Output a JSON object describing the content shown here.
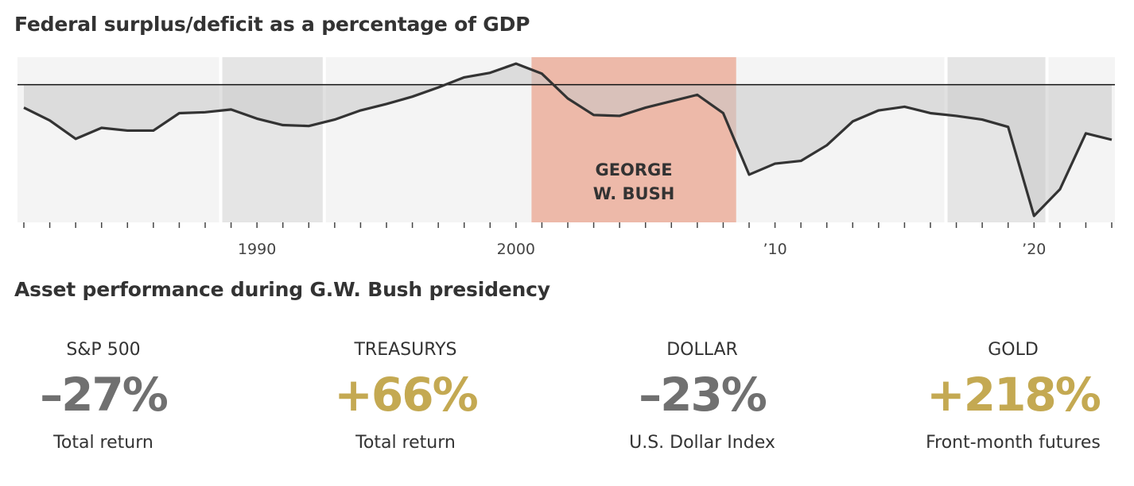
{
  "chart_data": {
    "type": "area",
    "title": "Federal surplus/deficit as a percentage of GDP",
    "xlabel": "",
    "ylabel": "",
    "xlim": [
      1981,
      2023
    ],
    "ylim": [
      -15,
      3
    ],
    "baseline": 0,
    "x_tick_labels": [
      {
        "year": 1990,
        "label": "1990"
      },
      {
        "year": 2000,
        "label": "2000"
      },
      {
        "year": 2010,
        "label": "’10"
      },
      {
        "year": 2020,
        "label": "’20"
      }
    ],
    "series": [
      {
        "name": "Surplus/deficit (% of GDP)",
        "x": [
          1981,
          1982,
          1983,
          1984,
          1985,
          1986,
          1987,
          1988,
          1989,
          1990,
          1991,
          1992,
          1993,
          1994,
          1995,
          1996,
          1997,
          1998,
          1999,
          2000,
          2001,
          2002,
          2003,
          2004,
          2005,
          2006,
          2007,
          2008,
          2009,
          2010,
          2011,
          2012,
          2013,
          2014,
          2015,
          2016,
          2017,
          2018,
          2019,
          2020,
          2021,
          2022,
          2023
        ],
        "values": [
          -2.5,
          -3.9,
          -5.9,
          -4.7,
          -5.0,
          -5.0,
          -3.1,
          -3.0,
          -2.7,
          -3.7,
          -4.4,
          -4.5,
          -3.8,
          -2.8,
          -2.1,
          -1.3,
          -0.3,
          0.8,
          1.3,
          2.3,
          1.2,
          -1.5,
          -3.3,
          -3.4,
          -2.5,
          -1.8,
          -1.1,
          -3.1,
          -9.8,
          -8.6,
          -8.3,
          -6.6,
          -4.0,
          -2.8,
          -2.4,
          -3.1,
          -3.4,
          -3.8,
          -4.6,
          -14.3,
          -11.4,
          -5.3,
          -6.0
        ]
      }
    ],
    "shaded_periods": [
      {
        "start": 1988.6,
        "end": 1992.6,
        "kind": "light"
      },
      {
        "start": 2016.6,
        "end": 2020.5,
        "kind": "light"
      },
      {
        "start": 2000.6,
        "end": 2008.5,
        "kind": "highlight",
        "label_line1": "GEORGE",
        "label_line2": "W. BUSH"
      }
    ]
  },
  "colors": {
    "panel_bg": "#f4f4f4",
    "shade_light": "#e5e5e5",
    "highlight": "#edb9a9",
    "area_fill": "#c9c9c9",
    "line": "#333333",
    "gray_value": "#707070",
    "gold_value": "#c4a952"
  },
  "chart_title": "Federal surplus/deficit as a percentage of GDP",
  "panel_title": "Asset performance during G.W. Bush presidency",
  "assets": [
    {
      "name": "S&P 500",
      "value": "–27%",
      "desc": "Total return",
      "color": "#707070"
    },
    {
      "name": "TREASURYS",
      "value": "+66%",
      "desc": "Total return",
      "color": "#c4a952"
    },
    {
      "name": "DOLLAR",
      "value": "–23%",
      "desc": "U.S. Dollar Index",
      "color": "#707070"
    },
    {
      "name": "GOLD",
      "value": "+218%",
      "desc": "Front-month futures",
      "color": "#c4a952"
    }
  ]
}
